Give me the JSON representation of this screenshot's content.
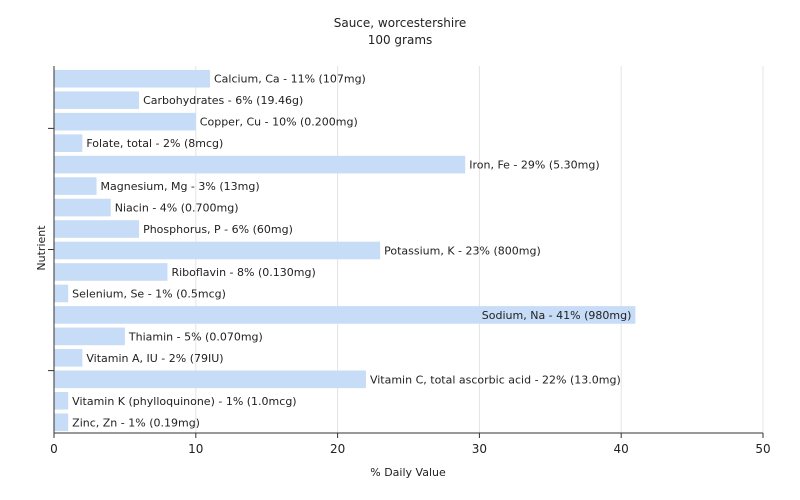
{
  "chart_data": {
    "type": "bar",
    "orientation": "horizontal",
    "title": "Sauce, worcestershire",
    "subtitle": "100 grams",
    "xlabel": "% Daily Value",
    "ylabel": "Nutrient",
    "xlim": [
      0,
      50
    ],
    "xticks": [
      0,
      10,
      20,
      30,
      40,
      50
    ],
    "grid": true,
    "legend": "none",
    "bar_color": "#c6dcf7",
    "categories": [
      "Calcium, Ca",
      "Carbohydrates",
      "Copper, Cu",
      "Folate, total",
      "Iron, Fe",
      "Magnesium, Mg",
      "Niacin",
      "Phosphorus, P",
      "Potassium, K",
      "Riboflavin",
      "Selenium, Se",
      "Sodium, Na",
      "Thiamin",
      "Vitamin A, IU",
      "Vitamin C, total ascorbic acid",
      "Vitamin K (phylloquinone)",
      "Zinc, Zn"
    ],
    "values": [
      11,
      6,
      10,
      2,
      29,
      3,
      4,
      6,
      23,
      8,
      1,
      41,
      5,
      2,
      22,
      1,
      1
    ],
    "labels": [
      "Calcium, Ca - 11% (107mg)",
      "Carbohydrates - 6% (19.46g)",
      "Copper, Cu - 10% (0.200mg)",
      "Folate, total - 2% (8mcg)",
      "Iron, Fe - 29% (5.30mg)",
      "Magnesium, Mg - 3% (13mg)",
      "Niacin - 4% (0.700mg)",
      "Phosphorus, P - 6% (60mg)",
      "Potassium, K - 23% (800mg)",
      "Riboflavin - 8% (0.130mg)",
      "Selenium, Se - 1% (0.5mcg)",
      "Sodium, Na - 41% (980mg)",
      "Thiamin - 5% (0.070mg)",
      "Vitamin A, IU - 2% (79IU)",
      "Vitamin C, total ascorbic acid - 22% (13.0mg)",
      "Vitamin K (phylloquinone) - 1% (1.0mcg)",
      "Zinc, Zn - 1% (0.19mg)"
    ]
  }
}
